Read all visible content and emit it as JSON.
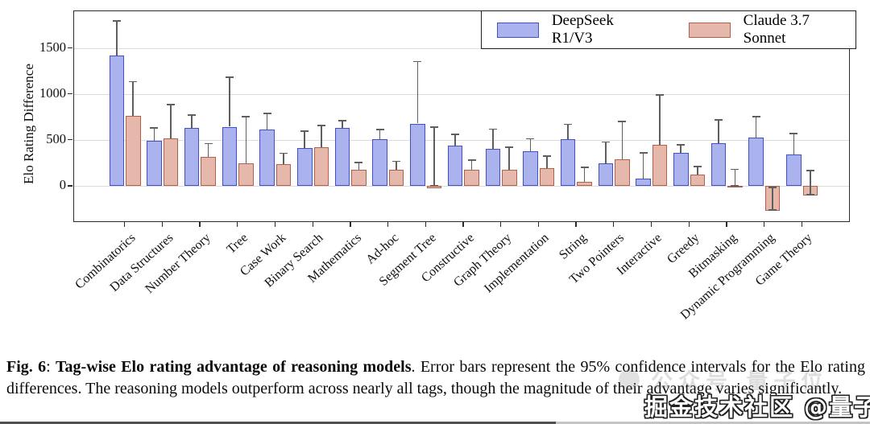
{
  "chart_data": {
    "type": "bar",
    "title": "",
    "ylabel": "Elo Rating Difference",
    "xlabel": "",
    "ylim": [
      -400,
      1900
    ],
    "yticks": [
      0,
      500,
      1000,
      1500
    ],
    "grid": "horizontal",
    "legend_position": "upper right",
    "categories": [
      "Combinatorics",
      "Data Structures",
      "Number Theory",
      "Tree",
      "Case Work",
      "Binary Search",
      "Mathematics",
      "Ad-hoc",
      "Segment Tree",
      "Constructive",
      "Graph Theory",
      "Implementation",
      "String",
      "Two Pointers",
      "Interactive",
      "Greedy",
      "Bitmasking",
      "Dynamic Programming",
      "Game Theory"
    ],
    "series": [
      {
        "name": "DeepSeek R1/V3",
        "fill_color": "#aab3ee",
        "edge_color": "#4150c6",
        "values": [
          1420,
          490,
          630,
          645,
          615,
          410,
          635,
          510,
          680,
          440,
          405,
          380,
          510,
          245,
          85,
          365,
          470,
          530,
          345
        ],
        "ci_upper": [
          1800,
          640,
          780,
          1190,
          795,
          605,
          720,
          620,
          1360,
          570,
          625,
          520,
          680,
          485,
          370,
          455,
          725,
          760,
          580
        ],
        "ci_lower": [
          null,
          null,
          null,
          null,
          null,
          null,
          null,
          null,
          null,
          null,
          null,
          null,
          null,
          null,
          null,
          null,
          null,
          null,
          null
        ]
      },
      {
        "name": "Claude 3.7 Sonnet",
        "fill_color": "#e6b8ab",
        "edge_color": "#b2604b",
        "values": [
          760,
          520,
          320,
          250,
          240,
          420,
          180,
          180,
          -25,
          175,
          175,
          195,
          50,
          295,
          450,
          125,
          5,
          -270,
          -105
        ],
        "ci_upper": [
          1140,
          890,
          470,
          760,
          365,
          665,
          265,
          275,
          650,
          290,
          430,
          335,
          210,
          710,
          1000,
          220,
          190,
          -10,
          175
        ],
        "ci_lower": [
          null,
          null,
          null,
          null,
          null,
          null,
          null,
          null,
          0,
          null,
          null,
          null,
          null,
          null,
          null,
          null,
          -5,
          -265,
          -100
        ]
      }
    ],
    "error_bar_note": "95% confidence intervals",
    "colors": {
      "grid": "#dcdcdc",
      "frame": "#2b2b2b",
      "error_bar": "#5f5f5f"
    }
  },
  "legend": {
    "items": [
      {
        "label": "DeepSeek R1/V3"
      },
      {
        "label": "Claude 3.7 Sonnet"
      }
    ]
  },
  "caption": {
    "fig_label": "Fig. 6",
    "colon": ": ",
    "bold_title": "Tag-wise Elo rating advantage of reasoning models",
    "body": ". Error bars represent the 95% confidence intervals for the Elo rating differences. The reasoning models outperform across nearly all tags, though the magnitude of their advantage varies significantly."
  },
  "watermarks": {
    "faint_text": "公众号 量子位",
    "outlined_text": "掘金技术社区 @量子位"
  }
}
